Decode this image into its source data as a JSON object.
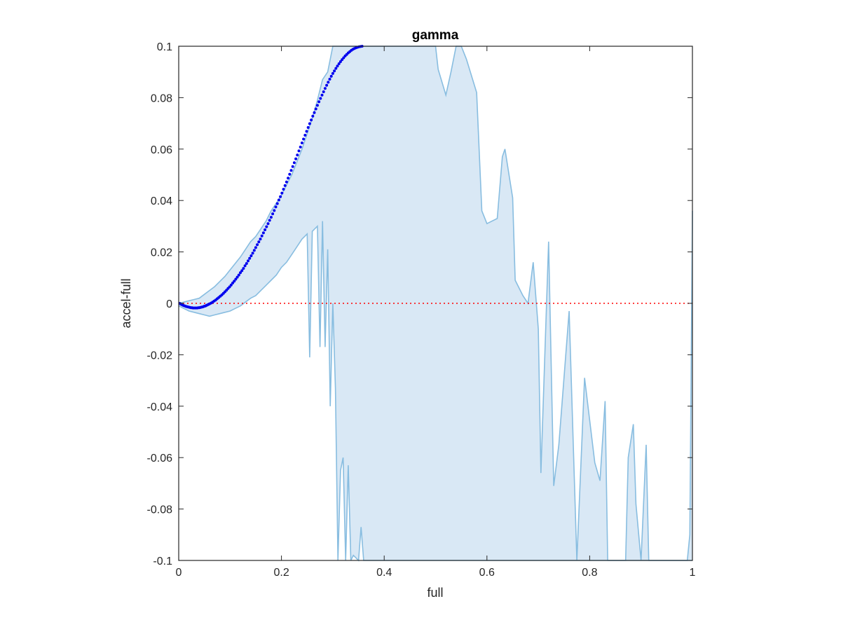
{
  "chart_data": {
    "type": "scatter",
    "title": "gamma",
    "xlabel": "full",
    "ylabel": "accel-full",
    "xlim": [
      0,
      1
    ],
    "ylim": [
      -0.1,
      0.1
    ],
    "xticks": [
      0,
      0.2,
      0.4,
      0.6,
      0.8,
      1
    ],
    "xtick_labels": [
      "0",
      "0.2",
      "0.4",
      "0.6",
      "0.8",
      "1"
    ],
    "yticks": [
      -0.1,
      -0.08,
      -0.06,
      -0.04,
      -0.02,
      0,
      0.02,
      0.04,
      0.06,
      0.08,
      0.1
    ],
    "ytick_labels": [
      "-0.1",
      "-0.08",
      "-0.06",
      "-0.04",
      "-0.02",
      "0",
      "0.02",
      "0.04",
      "0.06",
      "0.08",
      "0.1"
    ],
    "grid": false,
    "box": true,
    "reference_line": {
      "y": 0,
      "style": "dotted",
      "color": "#ff0000"
    },
    "band": {
      "fill_color": "#d9e8f5",
      "line_color": "#88bde0",
      "upper": [
        [
          0.0,
          0.0
        ],
        [
          0.01,
          0.0005
        ],
        [
          0.02,
          0.001
        ],
        [
          0.03,
          0.0015
        ],
        [
          0.04,
          0.002
        ],
        [
          0.05,
          0.0035
        ],
        [
          0.06,
          0.005
        ],
        [
          0.07,
          0.0065
        ],
        [
          0.08,
          0.0085
        ],
        [
          0.09,
          0.0105
        ],
        [
          0.1,
          0.013
        ],
        [
          0.11,
          0.0155
        ],
        [
          0.12,
          0.018
        ],
        [
          0.13,
          0.021
        ],
        [
          0.14,
          0.024
        ],
        [
          0.15,
          0.026
        ],
        [
          0.16,
          0.029
        ],
        [
          0.17,
          0.032
        ],
        [
          0.18,
          0.036
        ],
        [
          0.19,
          0.039
        ],
        [
          0.2,
          0.042
        ],
        [
          0.21,
          0.046
        ],
        [
          0.22,
          0.05
        ],
        [
          0.23,
          0.055
        ],
        [
          0.24,
          0.06
        ],
        [
          0.25,
          0.066
        ],
        [
          0.26,
          0.072
        ],
        [
          0.27,
          0.079
        ],
        [
          0.28,
          0.087
        ],
        [
          0.29,
          0.09
        ],
        [
          0.3,
          0.1
        ],
        [
          0.5,
          0.1
        ],
        [
          0.505,
          0.091
        ],
        [
          0.52,
          0.081
        ],
        [
          0.53,
          0.09
        ],
        [
          0.54,
          0.1
        ],
        [
          0.55,
          0.1
        ],
        [
          0.56,
          0.095
        ],
        [
          0.58,
          0.082
        ],
        [
          0.59,
          0.036
        ],
        [
          0.6,
          0.031
        ],
        [
          0.62,
          0.033
        ],
        [
          0.63,
          0.057
        ],
        [
          0.635,
          0.06
        ],
        [
          0.65,
          0.041
        ],
        [
          0.655,
          0.009
        ],
        [
          0.67,
          0.003
        ],
        [
          0.68,
          0.0
        ],
        [
          0.69,
          0.016
        ],
        [
          0.7,
          -0.01
        ],
        [
          0.705,
          -0.066
        ],
        [
          0.72,
          0.024
        ],
        [
          0.73,
          -0.071
        ],
        [
          0.74,
          -0.055
        ],
        [
          0.76,
          -0.003
        ],
        [
          0.775,
          -0.1
        ],
        [
          0.79,
          -0.029
        ],
        [
          0.81,
          -0.062
        ],
        [
          0.82,
          -0.069
        ],
        [
          0.83,
          -0.038
        ],
        [
          0.835,
          -0.1
        ],
        [
          0.87,
          -0.1
        ],
        [
          0.875,
          -0.06
        ],
        [
          0.885,
          -0.047
        ],
        [
          0.89,
          -0.078
        ],
        [
          0.9,
          -0.1
        ],
        [
          0.91,
          -0.055
        ],
        [
          0.915,
          -0.1
        ],
        [
          0.99,
          -0.1
        ],
        [
          0.995,
          -0.09
        ],
        [
          1.0,
          0.036
        ]
      ],
      "lower": [
        [
          0.0,
          -0.001
        ],
        [
          0.01,
          -0.002
        ],
        [
          0.02,
          -0.003
        ],
        [
          0.03,
          -0.0035
        ],
        [
          0.04,
          -0.004
        ],
        [
          0.05,
          -0.0045
        ],
        [
          0.06,
          -0.005
        ],
        [
          0.07,
          -0.0045
        ],
        [
          0.08,
          -0.004
        ],
        [
          0.09,
          -0.0035
        ],
        [
          0.1,
          -0.003
        ],
        [
          0.11,
          -0.002
        ],
        [
          0.12,
          -0.001
        ],
        [
          0.13,
          0.0005
        ],
        [
          0.14,
          0.002
        ],
        [
          0.15,
          0.003
        ],
        [
          0.16,
          0.005
        ],
        [
          0.17,
          0.007
        ],
        [
          0.18,
          0.009
        ],
        [
          0.19,
          0.011
        ],
        [
          0.2,
          0.014
        ],
        [
          0.21,
          0.016
        ],
        [
          0.22,
          0.019
        ],
        [
          0.23,
          0.022
        ],
        [
          0.24,
          0.025
        ],
        [
          0.25,
          0.027
        ],
        [
          0.255,
          -0.021
        ],
        [
          0.26,
          0.028
        ],
        [
          0.27,
          0.03
        ],
        [
          0.275,
          -0.017
        ],
        [
          0.28,
          0.032
        ],
        [
          0.285,
          -0.017
        ],
        [
          0.29,
          0.021
        ],
        [
          0.295,
          -0.04
        ],
        [
          0.3,
          0.0
        ],
        [
          0.305,
          -0.033
        ],
        [
          0.31,
          -0.1
        ],
        [
          0.315,
          -0.065
        ],
        [
          0.32,
          -0.06
        ],
        [
          0.325,
          -0.1
        ],
        [
          0.33,
          -0.063
        ],
        [
          0.335,
          -0.1
        ],
        [
          0.34,
          -0.098
        ],
        [
          0.35,
          -0.1
        ],
        [
          0.355,
          -0.087
        ],
        [
          0.36,
          -0.1
        ],
        [
          0.5,
          -0.1
        ],
        [
          0.7,
          -0.1
        ],
        [
          0.99,
          -0.1
        ],
        [
          1.0,
          -0.1
        ]
      ]
    },
    "points": [
      [
        0.002,
        0.0
      ],
      [
        0.004,
        -0.0003
      ],
      [
        0.006,
        -0.0005
      ],
      [
        0.008,
        -0.0007
      ],
      [
        0.01,
        -0.0009
      ],
      [
        0.012,
        -0.001
      ],
      [
        0.014,
        -0.0012
      ],
      [
        0.016,
        -0.0013
      ],
      [
        0.018,
        -0.0014
      ],
      [
        0.02,
        -0.0015
      ],
      [
        0.022,
        -0.0016
      ],
      [
        0.024,
        -0.0017
      ],
      [
        0.026,
        -0.0017
      ],
      [
        0.028,
        -0.0018
      ],
      [
        0.03,
        -0.0018
      ],
      [
        0.032,
        -0.0018
      ],
      [
        0.034,
        -0.0018
      ],
      [
        0.036,
        -0.0018
      ],
      [
        0.038,
        -0.0017
      ],
      [
        0.04,
        -0.0017
      ],
      [
        0.042,
        -0.0016
      ],
      [
        0.044,
        -0.0015
      ],
      [
        0.046,
        -0.0014
      ],
      [
        0.048,
        -0.0013
      ],
      [
        0.05,
        -0.0011
      ],
      [
        0.052,
        -0.001
      ],
      [
        0.054,
        -0.0008
      ],
      [
        0.056,
        -0.0006
      ],
      [
        0.058,
        -0.0004
      ],
      [
        0.06,
        -0.0002
      ],
      [
        0.063,
        0.0001
      ],
      [
        0.066,
        0.0005
      ],
      [
        0.069,
        0.0009
      ],
      [
        0.072,
        0.0013
      ],
      [
        0.075,
        0.0018
      ],
      [
        0.078,
        0.0023
      ],
      [
        0.081,
        0.0028
      ],
      [
        0.084,
        0.0033
      ],
      [
        0.087,
        0.0039
      ],
      [
        0.09,
        0.0045
      ],
      [
        0.093,
        0.0051
      ],
      [
        0.096,
        0.0058
      ],
      [
        0.099,
        0.0064
      ],
      [
        0.102,
        0.0071
      ],
      [
        0.105,
        0.0079
      ],
      [
        0.108,
        0.0086
      ],
      [
        0.111,
        0.0094
      ],
      [
        0.114,
        0.0102
      ],
      [
        0.117,
        0.011
      ],
      [
        0.12,
        0.0119
      ],
      [
        0.123,
        0.0127
      ],
      [
        0.126,
        0.0136
      ],
      [
        0.129,
        0.0146
      ],
      [
        0.132,
        0.0155
      ],
      [
        0.135,
        0.0165
      ],
      [
        0.138,
        0.0175
      ],
      [
        0.141,
        0.0185
      ],
      [
        0.144,
        0.0195
      ],
      [
        0.147,
        0.0206
      ],
      [
        0.15,
        0.0217
      ],
      [
        0.153,
        0.0228
      ],
      [
        0.156,
        0.0239
      ],
      [
        0.159,
        0.025
      ],
      [
        0.162,
        0.0262
      ],
      [
        0.165,
        0.0274
      ],
      [
        0.168,
        0.0286
      ],
      [
        0.171,
        0.0298
      ],
      [
        0.174,
        0.031
      ],
      [
        0.177,
        0.0323
      ],
      [
        0.18,
        0.0335
      ],
      [
        0.183,
        0.0348
      ],
      [
        0.186,
        0.0361
      ],
      [
        0.189,
        0.0375
      ],
      [
        0.192,
        0.0388
      ],
      [
        0.195,
        0.0402
      ],
      [
        0.198,
        0.0415
      ],
      [
        0.201,
        0.0429
      ],
      [
        0.204,
        0.0444
      ],
      [
        0.207,
        0.0458
      ],
      [
        0.21,
        0.0472
      ],
      [
        0.213,
        0.0487
      ],
      [
        0.216,
        0.0502
      ],
      [
        0.219,
        0.0517
      ],
      [
        0.222,
        0.0532
      ],
      [
        0.225,
        0.0547
      ],
      [
        0.228,
        0.0562
      ],
      [
        0.231,
        0.0577
      ],
      [
        0.234,
        0.0593
      ],
      [
        0.237,
        0.0608
      ],
      [
        0.24,
        0.0624
      ],
      [
        0.243,
        0.0639
      ],
      [
        0.246,
        0.0654
      ],
      [
        0.249,
        0.0669
      ],
      [
        0.252,
        0.0684
      ],
      [
        0.255,
        0.0699
      ],
      [
        0.258,
        0.0713
      ],
      [
        0.261,
        0.0728
      ],
      [
        0.264,
        0.0742
      ],
      [
        0.267,
        0.0756
      ],
      [
        0.27,
        0.077
      ],
      [
        0.273,
        0.0784
      ],
      [
        0.276,
        0.0797
      ],
      [
        0.279,
        0.081
      ],
      [
        0.282,
        0.0823
      ],
      [
        0.285,
        0.0836
      ],
      [
        0.288,
        0.0848
      ],
      [
        0.291,
        0.086
      ],
      [
        0.294,
        0.0872
      ],
      [
        0.297,
        0.0883
      ],
      [
        0.3,
        0.0894
      ],
      [
        0.303,
        0.0904
      ],
      [
        0.306,
        0.0914
      ],
      [
        0.309,
        0.0923
      ],
      [
        0.312,
        0.0932
      ],
      [
        0.315,
        0.094
      ],
      [
        0.318,
        0.0948
      ],
      [
        0.321,
        0.0955
      ],
      [
        0.324,
        0.0962
      ],
      [
        0.327,
        0.0968
      ],
      [
        0.33,
        0.0974
      ],
      [
        0.333,
        0.0979
      ],
      [
        0.336,
        0.0984
      ],
      [
        0.339,
        0.0988
      ],
      [
        0.342,
        0.0991
      ],
      [
        0.345,
        0.0994
      ],
      [
        0.348,
        0.0996
      ],
      [
        0.351,
        0.0998
      ],
      [
        0.354,
        0.0999
      ],
      [
        0.357,
        0.1
      ]
    ]
  }
}
